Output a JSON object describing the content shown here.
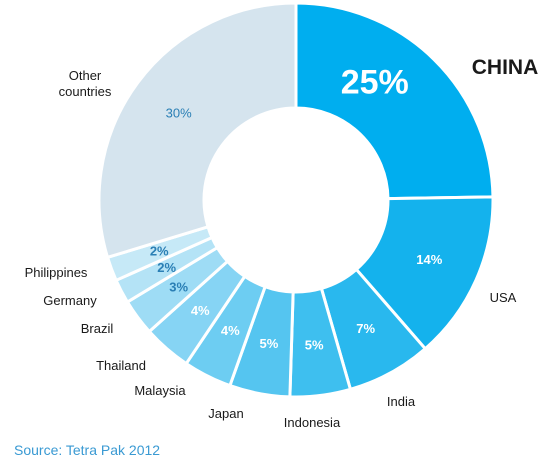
{
  "chart_data": {
    "type": "pie",
    "donut": true,
    "title": "",
    "slices": [
      {
        "label": "CHINA",
        "value": 25,
        "value_label": "25%",
        "color": "#00aeef"
      },
      {
        "label": "USA",
        "value": 14,
        "value_label": "14%",
        "color": "#14b2ed"
      },
      {
        "label": "India",
        "value": 7,
        "value_label": "7%",
        "color": "#29b8ee"
      },
      {
        "label": "Indonesia",
        "value": 5,
        "value_label": "5%",
        "color": "#3ebfef"
      },
      {
        "label": "Japan",
        "value": 5,
        "value_label": "5%",
        "color": "#55c5f0"
      },
      {
        "label": "Malaysia",
        "value": 4,
        "value_label": "4%",
        "color": "#6dcdf2"
      },
      {
        "label": "Thailand",
        "value": 4,
        "value_label": "4%",
        "color": "#86d4f4"
      },
      {
        "label": "Brazil",
        "value": 3,
        "value_label": "3%",
        "color": "#9edcf5"
      },
      {
        "label": "Germany",
        "value": 2,
        "value_label": "2%",
        "color": "#b4e3f6"
      },
      {
        "label": "Philippines",
        "value": 2,
        "value_label": "2%",
        "color": "#c6e9f7"
      },
      {
        "label": "Other countries",
        "value": 30,
        "value_label": "30%",
        "color": "#d5e4ee"
      }
    ]
  },
  "source": "Source: Tetra Pak 2012"
}
